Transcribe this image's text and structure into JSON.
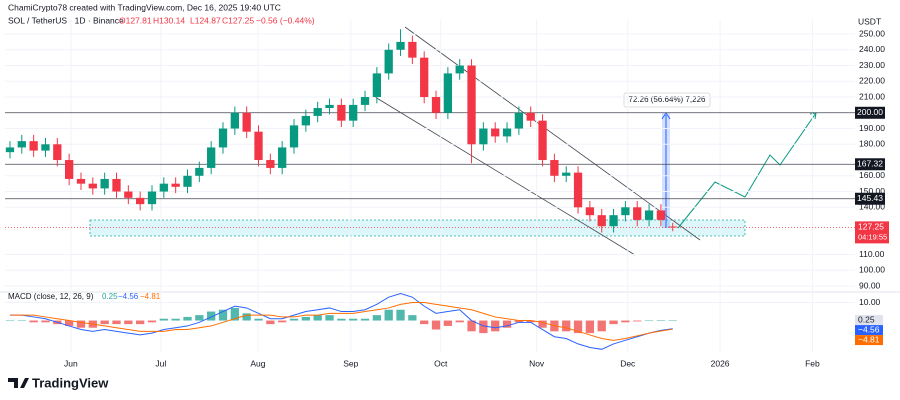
{
  "header": {
    "credit": "ChamiCrypto78 created with TradingView.com, Dec 16, 2025 19:40 UTC",
    "symbol": "SOL / TetherUS · 1D · Binance",
    "ohlc": [
      "O127.81",
      "H130.14",
      "L124.87",
      "C127.25",
      "−0.56 (−0.44%)"
    ],
    "currency": "USDT",
    "logo": "TradingView"
  },
  "chart_data": {
    "type": "candlestick",
    "open": [
      175,
      178,
      182,
      176,
      180,
      170,
      158,
      155,
      152,
      158,
      150,
      146,
      142,
      150,
      155,
      153,
      160,
      165,
      178,
      190,
      200,
      188,
      170,
      165,
      178,
      192,
      198,
      203,
      205,
      195,
      205,
      210,
      225,
      240,
      245,
      235,
      210,
      200,
      225,
      230,
      180,
      190,
      185,
      190,
      200,
      195,
      170,
      160,
      162,
      140,
      135,
      128,
      135,
      140,
      132,
      138,
      127.81
    ],
    "high": [
      182,
      186,
      186,
      184,
      184,
      174,
      162,
      159,
      162,
      162,
      154,
      150,
      154,
      159,
      159,
      164,
      169,
      182,
      194,
      204,
      204,
      192,
      174,
      182,
      196,
      202,
      207,
      209,
      209,
      209,
      214,
      229,
      244,
      253,
      249,
      239,
      214,
      229,
      234,
      234,
      194,
      194,
      194,
      204,
      204,
      199,
      174,
      166,
      166,
      144,
      139,
      139,
      144,
      144,
      142,
      142,
      130.14
    ],
    "low": [
      171,
      174,
      172,
      172,
      166,
      154,
      151,
      148,
      148,
      146,
      142,
      138,
      138,
      146,
      149,
      149,
      156,
      161,
      174,
      186,
      184,
      166,
      161,
      161,
      174,
      188,
      194,
      199,
      191,
      191,
      201,
      206,
      221,
      236,
      231,
      206,
      196,
      196,
      221,
      168,
      176,
      181,
      181,
      186,
      191,
      166,
      156,
      156,
      136,
      131,
      124,
      124,
      131,
      128,
      128,
      128,
      124.87
    ],
    "close": [
      178,
      182,
      176,
      180,
      170,
      158,
      155,
      152,
      158,
      150,
      146,
      142,
      150,
      155,
      153,
      160,
      165,
      178,
      190,
      200,
      188,
      170,
      165,
      178,
      192,
      198,
      203,
      205,
      195,
      205,
      210,
      225,
      240,
      245,
      235,
      210,
      200,
      225,
      230,
      180,
      190,
      185,
      190,
      200,
      195,
      170,
      160,
      162,
      140,
      135,
      128,
      135,
      140,
      132,
      138,
      132,
      127.25
    ],
    "up_color": "#089981",
    "down_color": "#f23645",
    "xlim": [
      -0.42,
      71.4
    ],
    "xticks": [
      {
        "value": 5.15,
        "label": "Jun"
      },
      {
        "value": 12.75,
        "label": "Jul"
      },
      {
        "value": 20.95,
        "label": "Aug"
      },
      {
        "value": 28.8,
        "label": "Sep"
      },
      {
        "value": 36.4,
        "label": "Oct"
      },
      {
        "value": 44.5,
        "label": "Nov"
      },
      {
        "value": 52.2,
        "label": "Dec"
      },
      {
        "value": 60.0,
        "label": "2026"
      },
      {
        "value": 67.8,
        "label": "Feb"
      }
    ],
    "ylim": [
      87.5,
      258.9
    ],
    "yticks": [
      {
        "value": 250,
        "label": "250.00"
      },
      {
        "value": 240,
        "label": "240.00"
      },
      {
        "value": 230,
        "label": "230.00"
      },
      {
        "value": 220,
        "label": "220.00"
      },
      {
        "value": 210,
        "label": "210.00"
      },
      {
        "value": 190,
        "label": "190.00"
      },
      {
        "value": 180,
        "label": "180.00"
      },
      {
        "value": 160,
        "label": "160.00"
      },
      {
        "value": 150,
        "label": "150.00"
      },
      {
        "value": 140,
        "label": "140.00"
      },
      {
        "value": 110,
        "label": "110.00"
      },
      {
        "value": 100,
        "label": "100.00"
      },
      {
        "value": 90,
        "label": "90.00"
      }
    ],
    "levels": [
      {
        "value": 200,
        "label": "200.00"
      },
      {
        "value": 167.32,
        "label": "167.32"
      },
      {
        "value": 145.43,
        "label": "145.43"
      }
    ],
    "last_price_label": "127.25",
    "countdown": "04:19:55",
    "measure": "72.26 (56.64%) 7,226",
    "macd": {
      "title": "MACD (close, 12, 26, 9)",
      "legend_values": [
        "0.25",
        "−4.56",
        "−4.81"
      ],
      "ylim": [
        -17.5,
        14.2
      ],
      "yticks": [
        {
          "value": 10,
          "label": "10.00"
        }
      ],
      "histogram": [
        0,
        0,
        -1,
        -1,
        -2,
        -3,
        -4,
        -4,
        -2,
        -2,
        -2,
        -2,
        -1,
        1,
        1,
        2,
        3,
        5,
        6,
        7,
        4,
        1,
        -2,
        -1,
        1,
        2,
        3,
        3,
        1,
        1,
        1,
        3,
        6,
        6,
        3,
        -2,
        -5,
        -3,
        -1,
        -6,
        -7,
        -6,
        -4,
        -1,
        -1,
        -4,
        -6,
        -6,
        -7,
        -7,
        -6,
        -2,
        -1,
        -0.5,
        0,
        0.3,
        0.25
      ],
      "series": [
        {
          "name": "MACD",
          "color": "#2962ff",
          "values": [
            3,
            3,
            2,
            1,
            -1,
            -3,
            -5,
            -6,
            -5,
            -6,
            -7,
            -8,
            -7,
            -5,
            -4,
            -3,
            -1,
            2,
            5,
            8,
            7,
            4,
            1,
            1,
            3,
            5,
            6,
            7,
            5,
            5,
            6,
            9,
            13,
            15,
            13,
            8,
            4,
            5,
            6,
            0,
            -3,
            -4,
            -3,
            -1,
            -1,
            -5,
            -9,
            -10,
            -13,
            -15,
            -16,
            -13,
            -11,
            -9,
            -7,
            -5.5,
            -4.56
          ]
        },
        {
          "name": "Signal",
          "color": "#ff6d00",
          "values": [
            3,
            3,
            3,
            2,
            1,
            0,
            -1,
            -2,
            -3,
            -4,
            -5,
            -6,
            -6,
            -6,
            -5,
            -5,
            -4,
            -3,
            -1,
            1,
            3,
            3,
            3,
            2,
            2,
            3,
            3,
            4,
            4,
            4,
            5,
            6,
            7,
            9,
            10,
            10,
            9,
            8,
            7,
            6,
            4,
            2,
            1,
            0,
            0,
            -1,
            -3,
            -4,
            -6,
            -8,
            -10,
            -11,
            -10,
            -8.5,
            -7,
            -5.8,
            -4.81
          ]
        }
      ]
    }
  }
}
